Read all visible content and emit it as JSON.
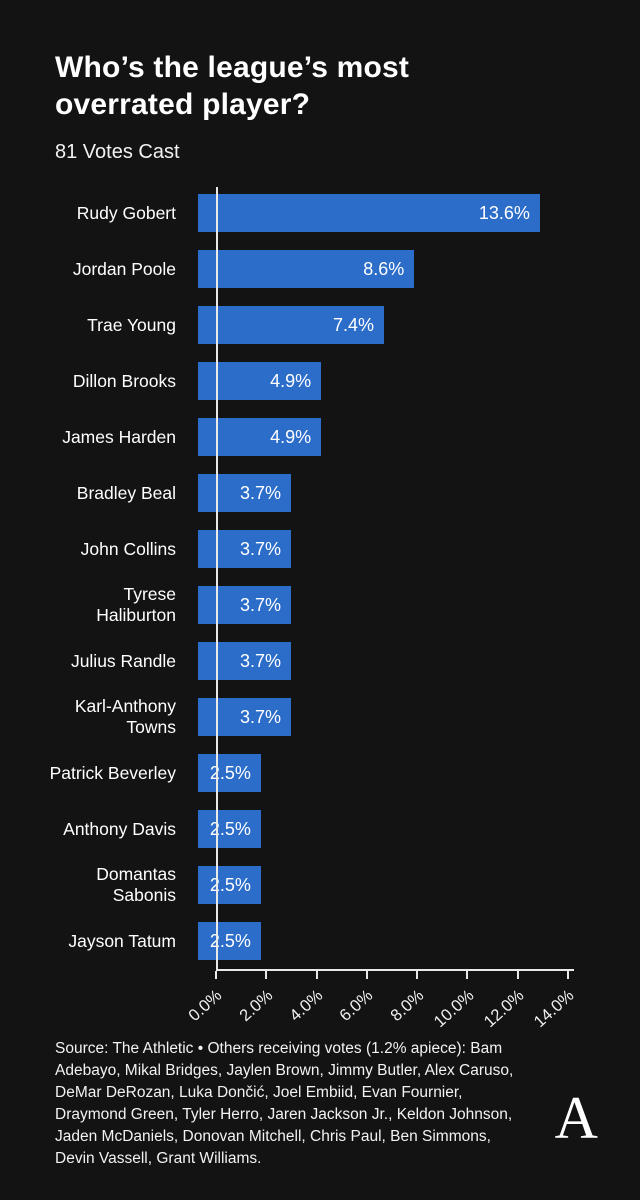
{
  "header": {
    "title": "Who’s the league’s most overrated player?",
    "subtitle": "81 Votes Cast"
  },
  "chart_data": {
    "type": "bar",
    "orientation": "horizontal",
    "title": "Who’s the league’s most overrated player?",
    "subtitle": "81 Votes Cast",
    "categories": [
      "Rudy Gobert",
      "Jordan Poole",
      "Trae Young",
      "Dillon Brooks",
      "James Harden",
      "Bradley Beal",
      "John Collins",
      "Tyrese\nHaliburton",
      "Julius Randle",
      "Karl-Anthony\nTowns",
      "Patrick Beverley",
      "Anthony Davis",
      "Domantas\nSabonis",
      "Jayson Tatum"
    ],
    "values": [
      13.6,
      8.6,
      7.4,
      4.9,
      4.9,
      3.7,
      3.7,
      3.7,
      3.7,
      3.7,
      2.5,
      2.5,
      2.5,
      2.5
    ],
    "value_labels": [
      "13.6%",
      "8.6%",
      "7.4%",
      "4.9%",
      "4.9%",
      "3.7%",
      "3.7%",
      "3.7%",
      "3.7%",
      "3.7%",
      "2.5%",
      "2.5%",
      "2.5%",
      "2.5%"
    ],
    "xlim": [
      0,
      14
    ],
    "x_ticks": [
      0,
      2,
      4,
      6,
      8,
      10,
      12,
      14
    ],
    "x_tick_labels": [
      "0.0%",
      "2.0%",
      "4.0%",
      "6.0%",
      "8.0%",
      "10.0%",
      "12.0%",
      "14.0%"
    ],
    "grid": false,
    "legend": "none",
    "bar_color": "#2c6dc9",
    "axis_color": "#e9e9e9",
    "background_color": "#131313",
    "text_color": "#ffffff"
  },
  "footer": {
    "source_text": "Source: The Athletic • Others receiving votes (1.2% apiece): Bam Adebayo, Mikal Bridges, Jaylen Brown, Jimmy Butler, Alex Caruso, DeMar DeRozan, Luka Dončić, Joel Embiid, Evan Fournier, Draymond Green, Tyler Herro, Jaren Jackson Jr., Keldon Johnson, Jaden McDaniels, Donovan Mitchell, Chris Paul, Ben Simmons, Devin Vassell, Grant Williams."
  },
  "logo": {
    "glyph": "A",
    "name": "The Athletic logo"
  }
}
